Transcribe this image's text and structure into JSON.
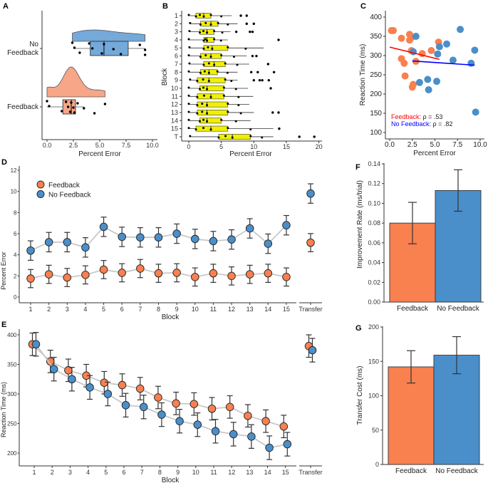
{
  "colors": {
    "feedback": "#F9804F",
    "no_feedback": "#4A8FCA",
    "feedback_light": "#F7A688",
    "no_feedback_light": "#74A9DA",
    "box_yellow": "#F0F000",
    "line_grey": "#C8C8C8",
    "fit_red": "#FF0000",
    "fit_blue": "#0000FF"
  },
  "chart_data": [
    {
      "panel": "A",
      "type": "raincloud",
      "xlabel": "Percent Error",
      "xlim": [
        0,
        10
      ],
      "xticks": [
        "0.0",
        "2.5",
        "5.0",
        "7.5",
        "10.0"
      ],
      "categories": [
        "No\nFeedback",
        "Feedback"
      ],
      "series": [
        {
          "name": "No Feedback",
          "box": {
            "q1": 4.1,
            "median": 5.4,
            "q3": 7.7,
            "lo": 2.5,
            "hi": 9.3
          },
          "points": [
            2.4,
            2.6,
            3.1,
            4.0,
            4.3,
            5.2,
            5.4,
            6.3,
            7.0,
            8.8,
            9.3,
            9.3
          ]
        },
        {
          "name": "Feedback",
          "box": {
            "q1": 1.5,
            "median": 2.3,
            "q3": 2.7,
            "lo": 0.0,
            "hi": 3.5
          },
          "points": [
            0.0,
            0.2,
            1.4,
            1.8,
            2.0,
            2.2,
            2.3,
            2.5,
            2.6,
            2.9,
            3.5,
            4.5,
            5.5
          ]
        }
      ]
    },
    {
      "panel": "B",
      "type": "boxplot",
      "xlabel": "Percent Error",
      "ylabel": "Block",
      "xlim": [
        0,
        20
      ],
      "xticks": [
        "0",
        "5",
        "10",
        "15",
        "20"
      ],
      "categories": [
        "1",
        "2",
        "3",
        "4",
        "5",
        "6",
        "7",
        "8",
        "9",
        "10",
        "11",
        "12",
        "13",
        "14",
        "15",
        "T"
      ],
      "boxes": [
        {
          "q1": 1.1,
          "median": 2.3,
          "q3": 3.4,
          "lo": 0,
          "hi": 6.6,
          "outliers": [
            8.0,
            8.9
          ]
        },
        {
          "q1": 1.8,
          "median": 3.4,
          "q3": 4.5,
          "lo": 0.2,
          "hi": 7.5,
          "outliers": [
            8.9,
            10.0
          ]
        },
        {
          "q1": 1.7,
          "median": 2.8,
          "q3": 3.9,
          "lo": 0.1,
          "hi": 6.4,
          "outliers": [
            7.3,
            9.4,
            9.8
          ]
        },
        {
          "q1": 2.3,
          "median": 2.8,
          "q3": 3.9,
          "lo": 0,
          "hi": 6.0,
          "outliers": [
            13.8
          ]
        },
        {
          "q1": 2.3,
          "median": 3.6,
          "q3": 6.0,
          "lo": 0.1,
          "hi": 11.5,
          "outliers": []
        },
        {
          "q1": 1.8,
          "median": 3.4,
          "q3": 5.0,
          "lo": 0,
          "hi": 8.9,
          "outliers": [
            9.8,
            10.4
          ]
        },
        {
          "q1": 2.3,
          "median": 3.9,
          "q3": 5.6,
          "lo": 0.1,
          "hi": 9.3,
          "outliers": [
            12.2
          ]
        },
        {
          "q1": 1.8,
          "median": 3.1,
          "q3": 4.4,
          "lo": 0,
          "hi": 7.5,
          "outliers": [
            9.6,
            10.6,
            13.1
          ]
        },
        {
          "q1": 1.3,
          "median": 3.1,
          "q3": 5.6,
          "lo": 0.2,
          "hi": 7.5,
          "outliers": [
            10.0,
            10.9,
            11.3,
            12.3
          ]
        },
        {
          "q1": 1.7,
          "median": 2.8,
          "q3": 5.4,
          "lo": 0,
          "hi": 9.1,
          "outliers": [
            12.6
          ]
        },
        {
          "q1": 1.3,
          "median": 3.4,
          "q3": 5.4,
          "lo": 0,
          "hi": 9.9,
          "outliers": []
        },
        {
          "q1": 1.3,
          "median": 2.8,
          "q3": 6.0,
          "lo": 0,
          "hi": 9.3,
          "outliers": []
        },
        {
          "q1": 1.3,
          "median": 2.8,
          "q3": 6.0,
          "lo": 0,
          "hi": 10.0,
          "outliers": [
            12.9,
            13.8
          ]
        },
        {
          "q1": 1.7,
          "median": 2.8,
          "q3": 5.0,
          "lo": 0,
          "hi": 9.5,
          "outliers": []
        },
        {
          "q1": 1.1,
          "median": 3.4,
          "q3": 6.0,
          "lo": 0,
          "hi": 13.0,
          "outliers": [
            13.9
          ]
        },
        {
          "q1": 4.6,
          "median": 6.7,
          "q3": 9.5,
          "lo": 0.2,
          "hi": 13.0,
          "outliers": [
            17.0,
            19.3
          ]
        }
      ]
    },
    {
      "panel": "C",
      "type": "scatter",
      "xlabel": "Percent Error",
      "ylabel": "Reaction Time (ms)",
      "xlim": [
        0,
        10
      ],
      "ylim": [
        100,
        400
      ],
      "xticks": [
        "0.0",
        "2.5",
        "5.0",
        "7.5",
        "10.0"
      ],
      "yticks": [
        "100",
        "150",
        "200",
        "250",
        "300",
        "350",
        "400"
      ],
      "annotations": [
        {
          "label": "Feedback:",
          "stat": "ρ = .53"
        },
        {
          "label": "No Feedback:",
          "stat": "ρ = .82"
        }
      ],
      "series": [
        {
          "name": "Feedback",
          "points": [
            [
              0.2,
              365
            ],
            [
              0.4,
              365
            ],
            [
              1.3,
              345
            ],
            [
              2.2,
              355
            ],
            [
              2.4,
              347
            ],
            [
              2.2,
              340
            ],
            [
              2.4,
              313
            ],
            [
              3.6,
              305
            ],
            [
              4.6,
              313
            ],
            [
              5.4,
              335
            ],
            [
              1.3,
              292
            ],
            [
              1.6,
              280
            ],
            [
              2.9,
              285
            ],
            [
              1.7,
              247
            ],
            [
              2.6,
              225
            ],
            [
              2.5,
              218
            ]
          ],
          "fit": [
            [
              0,
              322
            ],
            [
              5.5,
              290
            ]
          ]
        },
        {
          "name": "No Feedback",
          "points": [
            [
              2.9,
              350
            ],
            [
              2.6,
              310
            ],
            [
              5.3,
              304
            ],
            [
              5.5,
              323
            ],
            [
              6.3,
              330
            ],
            [
              7.8,
              368
            ],
            [
              7.0,
              288
            ],
            [
              9.0,
              280
            ],
            [
              9.4,
              314
            ],
            [
              3.3,
              230
            ],
            [
              4.2,
              238
            ],
            [
              4.3,
              211
            ],
            [
              5.2,
              233
            ],
            [
              9.5,
              153
            ]
          ],
          "fit": [
            [
              2.5,
              286
            ],
            [
              9.4,
              275
            ]
          ]
        }
      ]
    },
    {
      "panel": "D",
      "type": "line",
      "xlabel": "Block",
      "ylabel": "Percent Error",
      "ylim": [
        0,
        12
      ],
      "yticks": [
        "0",
        "2",
        "4",
        "6",
        "8",
        "10",
        "12"
      ],
      "categories": [
        "1",
        "2",
        "3",
        "4",
        "5",
        "6",
        "7",
        "8",
        "9",
        "10",
        "11",
        "12",
        "13",
        "14",
        "15"
      ],
      "transfer_label": "Transfer",
      "legend": "top-left",
      "series": [
        {
          "name": "Feedback",
          "values": [
            1.75,
            2.15,
            1.85,
            2.1,
            2.6,
            2.3,
            2.7,
            2.25,
            2.3,
            1.9,
            2.25,
            2.0,
            2.15,
            2.25,
            1.9
          ],
          "error": 0.86,
          "transfer": 5.15,
          "transfer_error": 0.86
        },
        {
          "name": "No Feedback",
          "values": [
            4.4,
            5.2,
            5.2,
            4.7,
            6.65,
            5.7,
            5.65,
            5.65,
            6.0,
            5.5,
            5.3,
            5.45,
            6.5,
            5.05,
            6.8
          ],
          "error": 0.92,
          "transfer": 9.8,
          "transfer_error": 0.92
        }
      ]
    },
    {
      "panel": "E",
      "type": "line",
      "xlabel": "Block",
      "ylabel": "Reaction Time (ms)",
      "ylim": [
        180,
        405
      ],
      "yticks": [
        "200",
        "250",
        "300",
        "350",
        "400"
      ],
      "categories": [
        "1",
        "2",
        "3",
        "4",
        "5",
        "6",
        "7",
        "8",
        "9",
        "10",
        "11",
        "12",
        "13",
        "14",
        "15"
      ],
      "transfer_label": "Transfer",
      "series": [
        {
          "name": "Feedback",
          "values": [
            384,
            355,
            340,
            331,
            319,
            315,
            309,
            294,
            284,
            283,
            275,
            278,
            263,
            254,
            245
          ],
          "error": 19,
          "transfer": 381,
          "transfer_error": 19
        },
        {
          "name": "No Feedback",
          "values": [
            384,
            342,
            325,
            311,
            300,
            281,
            278,
            265,
            254,
            248,
            237,
            232,
            228,
            209,
            215
          ],
          "error": 20,
          "transfer": 374,
          "transfer_error": 20
        }
      ]
    },
    {
      "panel": "F",
      "type": "bar",
      "ylabel": "Improvement Rate (ms/trial)",
      "ylim": [
        0,
        0.14
      ],
      "yticks": [
        "0.00",
        "0.02",
        "0.04",
        "0.06",
        "0.08",
        "0.10",
        "0.12",
        "0.14"
      ],
      "categories": [
        "Feedback",
        "No Feedback"
      ],
      "values": [
        0.08,
        0.113
      ],
      "errors": [
        0.021,
        0.021
      ]
    },
    {
      "panel": "G",
      "type": "bar",
      "ylabel": "Transfer Cost (ms)",
      "ylim": [
        0,
        200
      ],
      "yticks": [
        "0",
        "50",
        "100",
        "150",
        "200"
      ],
      "categories": [
        "Feedback",
        "No Feedback"
      ],
      "values": [
        142,
        159
      ],
      "errors": [
        23.5,
        27
      ]
    }
  ]
}
